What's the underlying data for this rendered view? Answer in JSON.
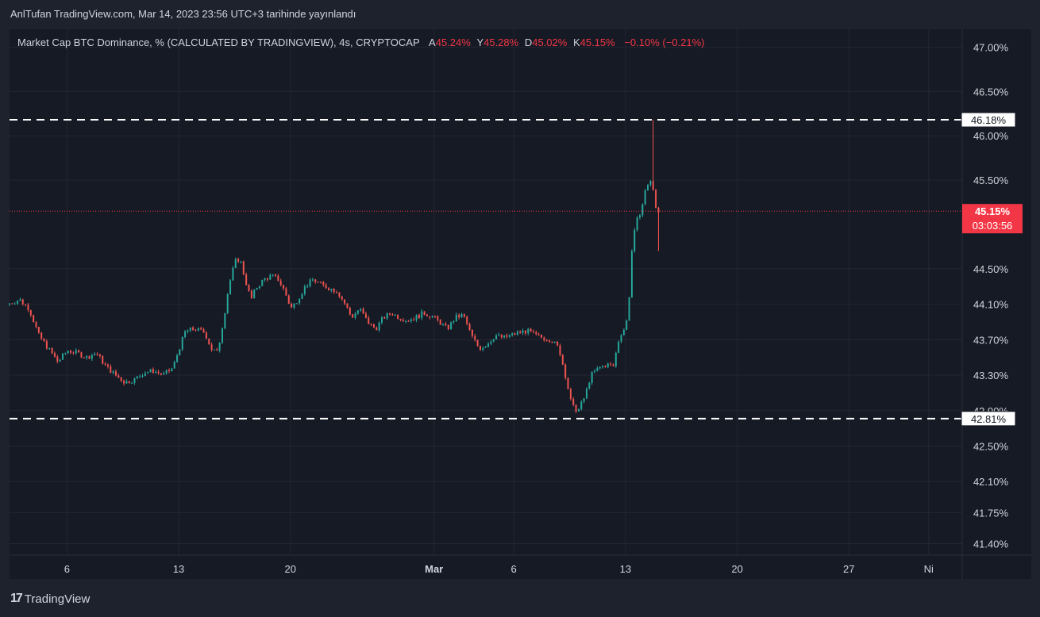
{
  "publisher_line": "AnlTufan TradingView.com, Mar 14, 2023 23:56 UTC+3 tarihinde yayınlandı",
  "legend": {
    "symbol": "Market Cap BTC Dominance, % (CALCULATED BY TRADINGVIEW), 4s, CRYPTOCAP",
    "open_label": "A",
    "open_value": "45.24%",
    "high_label": "Y",
    "high_value": "45.28%",
    "low_label": "D",
    "low_value": "45.02%",
    "close_label": "K",
    "close_value": "45.15%",
    "change": "−0.10% (−0.21%)"
  },
  "brand": {
    "logo": "17",
    "name": "TradingView"
  },
  "colors": {
    "up": "#26a69a",
    "down": "#ef5350",
    "grid": "#242733",
    "text": "#d1d4dc",
    "price_tag": "#f23645",
    "dashed": "#ffffff"
  },
  "chart_data": {
    "type": "candlestick",
    "y_ticks": [
      {
        "value": 47.0,
        "label": "47.00%"
      },
      {
        "value": 46.5,
        "label": "46.50%"
      },
      {
        "value": 46.0,
        "label": "46.00%"
      },
      {
        "value": 45.5,
        "label": "45.50%"
      },
      {
        "value": 44.5,
        "label": "44.50%"
      },
      {
        "value": 44.1,
        "label": "44.10%"
      },
      {
        "value": 43.7,
        "label": "43.70%"
      },
      {
        "value": 43.3,
        "label": "43.30%"
      },
      {
        "value": 42.9,
        "label": "42.90%"
      },
      {
        "value": 42.5,
        "label": "42.50%"
      },
      {
        "value": 42.1,
        "label": "42.10%"
      },
      {
        "value": 41.75,
        "label": "41.75%"
      },
      {
        "value": 41.4,
        "label": "41.40%"
      }
    ],
    "x_ticks": [
      {
        "day": 6,
        "label": "6"
      },
      {
        "day": 13,
        "label": "13"
      },
      {
        "day": 20,
        "label": "20"
      },
      {
        "day": 29,
        "label": "Mar"
      },
      {
        "day": 34,
        "label": "6"
      },
      {
        "day": 41,
        "label": "13"
      },
      {
        "day": 48,
        "label": "20"
      },
      {
        "day": 55,
        "label": "27"
      },
      {
        "day": 60,
        "label": "Ni"
      }
    ],
    "ylim": [
      41.27,
      47.2
    ],
    "xlim": [
      2.4,
      62.1
    ],
    "horizontal_lines": [
      {
        "value": 46.18,
        "label": "46.18%"
      },
      {
        "value": 42.81,
        "label": "42.81%"
      }
    ],
    "last_price": {
      "value": 45.15,
      "label": "45.15%",
      "countdown": "03:03:56"
    },
    "price_path": [
      [
        2.4,
        44.1
      ],
      [
        3.2,
        44.15
      ],
      [
        3.8,
        44.05
      ],
      [
        4.4,
        43.75
      ],
      [
        5.0,
        43.6
      ],
      [
        5.6,
        43.45
      ],
      [
        6.2,
        43.58
      ],
      [
        6.8,
        43.55
      ],
      [
        7.4,
        43.5
      ],
      [
        8.0,
        43.55
      ],
      [
        8.6,
        43.4
      ],
      [
        9.2,
        43.3
      ],
      [
        9.8,
        43.22
      ],
      [
        10.4,
        43.25
      ],
      [
        11.0,
        43.33
      ],
      [
        11.6,
        43.35
      ],
      [
        12.2,
        43.3
      ],
      [
        12.8,
        43.38
      ],
      [
        13.2,
        43.6
      ],
      [
        13.6,
        43.8
      ],
      [
        14.2,
        43.82
      ],
      [
        14.8,
        43.78
      ],
      [
        15.2,
        43.6
      ],
      [
        15.6,
        43.55
      ],
      [
        16.0,
        43.95
      ],
      [
        16.3,
        44.3
      ],
      [
        16.7,
        44.58
      ],
      [
        17.0,
        44.62
      ],
      [
        17.3,
        44.4
      ],
      [
        17.7,
        44.15
      ],
      [
        18.0,
        44.28
      ],
      [
        18.5,
        44.38
      ],
      [
        19.0,
        44.42
      ],
      [
        19.4,
        44.38
      ],
      [
        19.8,
        44.25
      ],
      [
        20.2,
        44.05
      ],
      [
        20.6,
        44.15
      ],
      [
        21.1,
        44.3
      ],
      [
        21.6,
        44.38
      ],
      [
        22.1,
        44.32
      ],
      [
        22.6,
        44.28
      ],
      [
        23.1,
        44.25
      ],
      [
        23.6,
        44.1
      ],
      [
        24.0,
        43.95
      ],
      [
        24.5,
        44.05
      ],
      [
        25.0,
        43.9
      ],
      [
        25.5,
        43.82
      ],
      [
        26.0,
        43.95
      ],
      [
        26.5,
        44.0
      ],
      [
        27.0,
        43.95
      ],
      [
        27.5,
        43.92
      ],
      [
        28.0,
        43.95
      ],
      [
        28.5,
        44.0
      ],
      [
        29.0,
        43.97
      ],
      [
        29.5,
        43.9
      ],
      [
        30.0,
        43.82
      ],
      [
        30.5,
        43.95
      ],
      [
        31.0,
        43.98
      ],
      [
        31.5,
        43.75
      ],
      [
        32.0,
        43.6
      ],
      [
        32.5,
        43.65
      ],
      [
        33.0,
        43.75
      ],
      [
        33.5,
        43.72
      ],
      [
        34.0,
        43.75
      ],
      [
        34.5,
        43.78
      ],
      [
        35.0,
        43.8
      ],
      [
        35.5,
        43.75
      ],
      [
        36.0,
        43.72
      ],
      [
        36.5,
        43.7
      ],
      [
        37.0,
        43.6
      ],
      [
        37.4,
        43.3
      ],
      [
        37.8,
        42.95
      ],
      [
        38.2,
        42.9
      ],
      [
        38.6,
        43.05
      ],
      [
        39.0,
        43.3
      ],
      [
        39.5,
        43.38
      ],
      [
        40.0,
        43.42
      ],
      [
        40.4,
        43.4
      ],
      [
        40.8,
        43.75
      ],
      [
        41.2,
        43.85
      ],
      [
        41.4,
        44.2
      ],
      [
        41.6,
        44.8
      ],
      [
        41.9,
        45.05
      ],
      [
        42.2,
        45.2
      ],
      [
        42.5,
        45.45
      ],
      [
        42.8,
        45.5
      ],
      [
        43.0,
        45.25
      ],
      [
        43.1,
        45.15
      ]
    ],
    "spike_high": {
      "day": 42.7,
      "value": 46.18
    }
  }
}
